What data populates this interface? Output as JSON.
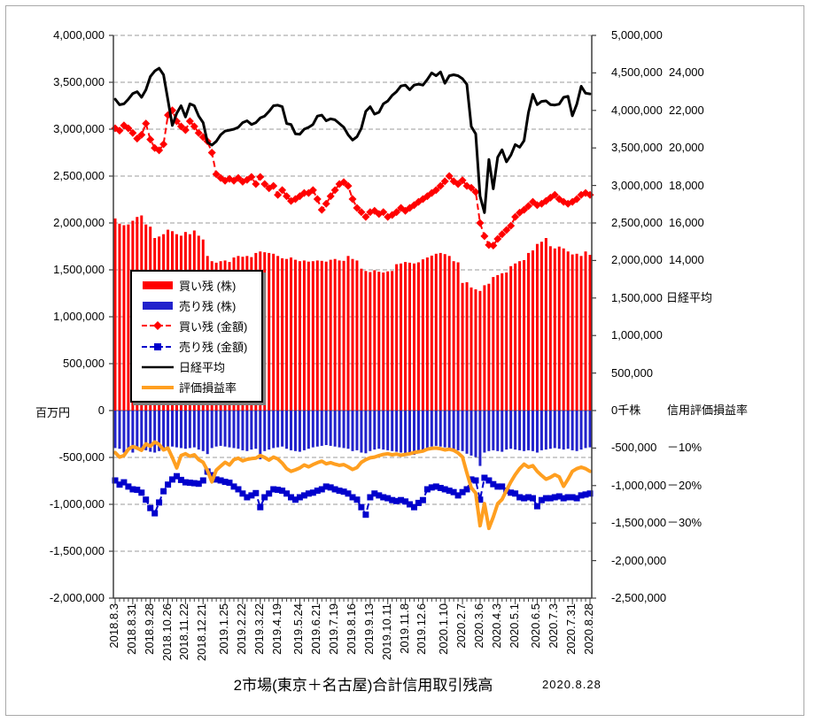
{
  "title": "2市場(東京＋名古屋)合計信用取引残高",
  "as_of_date": "2020.8.28",
  "axes": {
    "left_unit": "百万円",
    "left_labels": [
      "4,000,000",
      "3,500,000",
      "3,000,000",
      "2,500,000",
      "2,000,000",
      "1,500,000",
      "1,000,000",
      "500,000",
      "0",
      "-500,000",
      "-1,000,000",
      "-1,500,000",
      "-2,000,000"
    ],
    "right_labels": [
      "5,000,000",
      "4,500,000",
      "4,000,000",
      "3,500,000",
      "3,000,000",
      "2,500,000",
      "2,000,000",
      "1,500,000",
      "1,000,000",
      "500,000",
      "0千株",
      "-500,000",
      "-1,000,000",
      "-1,500,000",
      "-2,000,000",
      "-2,500,000"
    ],
    "nikkei_scale": {
      "name": "日経平均",
      "labels": [
        "24,000",
        "22,000",
        "20,000",
        "18,000",
        "16,000",
        "14,000"
      ],
      "values": [
        24000,
        22000,
        20000,
        18000,
        16000,
        14000
      ]
    },
    "pct_scale": {
      "name": "信用評価損益率",
      "labels": [
        "－10%",
        "－20%",
        "－30%"
      ],
      "values": [
        -10,
        -20,
        -30
      ]
    },
    "grid_color": "#9b9b9b",
    "axis_color": "#3f3f3f"
  },
  "legend": [
    {
      "label": "買い残 (株)",
      "type": "bar",
      "color": "#ff0000"
    },
    {
      "label": "売り残 (株)",
      "type": "bar",
      "color": "#2222cc"
    },
    {
      "label": "買い残 (金額)",
      "type": "dash-diamond",
      "color": "#ff0000"
    },
    {
      "label": "売り残 (金額)",
      "type": "dash-square",
      "color": "#0000cc"
    },
    {
      "label": "日経平均",
      "type": "line",
      "color": "#000000"
    },
    {
      "label": "評価損益率",
      "type": "line-thick",
      "color": "#ff9f20"
    }
  ],
  "chart_data": {
    "type": "combo",
    "title": "2市場(東京＋名古屋)合計信用取引残高",
    "as_of": "2020.8.28",
    "n_weeks": 109,
    "frequency": "weekly",
    "left_axis": {
      "label": "百万円",
      "range": [
        -2000000,
        4000000
      ],
      "step": 500000
    },
    "right_axis": {
      "label": "千株",
      "range": [
        -2500000,
        5000000
      ],
      "step": 500000
    },
    "nikkei_axis": {
      "label": "日経平均",
      "shown_range": [
        14000,
        24000
      ],
      "step": 2000
    },
    "pct_axis": {
      "label": "信用評価損益率",
      "shown_ticks": [
        -10,
        -20,
        -30
      ]
    },
    "grid": true,
    "legend_position": "inside-left",
    "x_ticks": [
      {
        "label": "2018.8.3",
        "week": 0
      },
      {
        "label": "2018.8.31",
        "week": 4
      },
      {
        "label": "2018.9.28",
        "week": 8
      },
      {
        "label": "2018.10.26",
        "week": 12
      },
      {
        "label": "2018.11.22",
        "week": 16
      },
      {
        "label": "2018.12.21",
        "week": 20
      },
      {
        "label": "2019.1.25",
        "week": 25
      },
      {
        "label": "2019.2.22",
        "week": 29
      },
      {
        "label": "2019.3.22",
        "week": 33
      },
      {
        "label": "2019.4.19",
        "week": 37
      },
      {
        "label": "2019.5.24",
        "week": 42
      },
      {
        "label": "2019.6.21",
        "week": 46
      },
      {
        "label": "2019.7.19",
        "week": 50
      },
      {
        "label": "2019.8.16",
        "week": 54
      },
      {
        "label": "2019.9.13",
        "week": 58
      },
      {
        "label": "2019.10.11",
        "week": 62
      },
      {
        "label": "2019.11.8",
        "week": 66
      },
      {
        "label": "2019.12.6",
        "week": 70
      },
      {
        "label": "2020.1.10",
        "week": 75
      },
      {
        "label": "2020.2.7",
        "week": 79
      },
      {
        "label": "2020.3.6",
        "week": 83
      },
      {
        "label": "2020.4.3",
        "week": 87
      },
      {
        "label": "2020.5.1",
        "week": 91
      },
      {
        "label": "2020.6.5",
        "week": 96
      },
      {
        "label": "2020.7.3",
        "week": 100
      },
      {
        "label": "2020.7.31",
        "week": 104
      },
      {
        "label": "2020.8.28",
        "week": 108
      }
    ],
    "series": [
      {
        "name": "買い残 (株)",
        "type": "bar",
        "axis": "right",
        "unit": "千株",
        "color": "#ff0000",
        "values": [
          2560000,
          2490000,
          2470000,
          2480000,
          2530000,
          2580000,
          2600000,
          2480000,
          2450000,
          2300000,
          2320000,
          2350000,
          2410000,
          2390000,
          2350000,
          2330000,
          2380000,
          2350000,
          2400000,
          2330000,
          2280000,
          2060000,
          1990000,
          1970000,
          1990000,
          2000000,
          1980000,
          2040000,
          2060000,
          2050000,
          2060000,
          2045000,
          2100000,
          2120000,
          2110000,
          2100000,
          2090000,
          2060000,
          2030000,
          2020000,
          2040000,
          2010000,
          1990000,
          2000000,
          1985000,
          1990000,
          2000000,
          1995000,
          1985000,
          2010000,
          2020000,
          2000000,
          1995000,
          2060000,
          2020000,
          2000000,
          1890000,
          1860000,
          1845000,
          1870000,
          1850000,
          1840000,
          1855000,
          1860000,
          1950000,
          1960000,
          1980000,
          1970000,
          1960000,
          1975000,
          2015000,
          2040000,
          2065000,
          2090000,
          2100000,
          2085000,
          2060000,
          1990000,
          1975000,
          1700000,
          1710000,
          1640000,
          1615000,
          1594000,
          1670000,
          1690000,
          1780000,
          1805000,
          1830000,
          1840000,
          1925000,
          1960000,
          1990000,
          2005000,
          2100000,
          2135000,
          2220000,
          2250000,
          2300000,
          2190000,
          2160000,
          2185000,
          2160000,
          2120000,
          2080000,
          2090000,
          2060000,
          2120000,
          2075000
        ]
      },
      {
        "name": "売り残 (株)",
        "type": "bar",
        "axis": "right",
        "unit": "千株",
        "color": "#2222cc",
        "values": [
          -500000,
          -510000,
          -560000,
          -500000,
          -560000,
          -520000,
          -500000,
          -530000,
          -550000,
          -560000,
          -540000,
          -520000,
          -500000,
          -480000,
          -490000,
          -500000,
          -510000,
          -500000,
          -490000,
          -520000,
          -540000,
          -580000,
          -500000,
          -480000,
          -470000,
          -480000,
          -490000,
          -500000,
          -510000,
          -530000,
          -540000,
          -520000,
          -510000,
          -650000,
          -540000,
          -520000,
          -500000,
          -490000,
          -480000,
          -510000,
          -530000,
          -540000,
          -550000,
          -530000,
          -510000,
          -490000,
          -480000,
          -470000,
          -460000,
          -470000,
          -480000,
          -490000,
          -500000,
          -510000,
          -540000,
          -530000,
          -560000,
          -570000,
          -540000,
          -520000,
          -510000,
          -520000,
          -530000,
          -540000,
          -550000,
          -560000,
          -570000,
          -580000,
          -590000,
          -570000,
          -550000,
          -500000,
          -480000,
          -470000,
          -480000,
          -490000,
          -500000,
          -520000,
          -530000,
          -540000,
          -575000,
          -600000,
          -620000,
          -738000,
          -560000,
          -540000,
          -530000,
          -540000,
          -550000,
          -520000,
          -510000,
          -520000,
          -530000,
          -540000,
          -530000,
          -540000,
          -560000,
          -530000,
          -520000,
          -510000,
          -500000,
          -510000,
          -520000,
          -510000,
          -530000,
          -540000,
          -520000,
          -500000,
          -490000
        ]
      },
      {
        "name": "買い残 (金額)",
        "type": "line-diamond",
        "axis": "left",
        "unit": "百万円",
        "color": "#ff0000",
        "values": [
          3010000,
          2985000,
          3040000,
          3010000,
          2960000,
          2900000,
          2940000,
          3060000,
          2890000,
          2800000,
          2775000,
          2840000,
          3150000,
          3200000,
          3085000,
          3030000,
          2990000,
          3085000,
          3030000,
          2960000,
          2915000,
          2870000,
          2750000,
          2520000,
          2480000,
          2450000,
          2470000,
          2450000,
          2480000,
          2440000,
          2460000,
          2490000,
          2415000,
          2490000,
          2415000,
          2370000,
          2395000,
          2300000,
          2350000,
          2285000,
          2235000,
          2255000,
          2285000,
          2320000,
          2320000,
          2350000,
          2255000,
          2140000,
          2205000,
          2285000,
          2350000,
          2415000,
          2435000,
          2395000,
          2255000,
          2160000,
          2115000,
          2065000,
          2115000,
          2130000,
          2095000,
          2115000,
          2065000,
          2085000,
          2115000,
          2160000,
          2130000,
          2160000,
          2190000,
          2225000,
          2255000,
          2285000,
          2320000,
          2350000,
          2395000,
          2445000,
          2500000,
          2445000,
          2415000,
          2455000,
          2395000,
          2375000,
          2330000,
          2000000,
          1860000,
          1765000,
          1760000,
          1830000,
          1880000,
          1925000,
          1970000,
          2065000,
          2110000,
          2140000,
          2180000,
          2225000,
          2190000,
          2205000,
          2235000,
          2270000,
          2300000,
          2255000,
          2225000,
          2205000,
          2225000,
          2255000,
          2300000,
          2320000,
          2300000
        ]
      },
      {
        "name": "売り残 (金額)",
        "type": "line-square",
        "axis": "left",
        "unit": "百万円",
        "color": "#0000cc",
        "values": [
          -745000,
          -790000,
          -765000,
          -810000,
          -840000,
          -845000,
          -875000,
          -950000,
          -1040000,
          -1095000,
          -980000,
          -860000,
          -790000,
          -735000,
          -700000,
          -740000,
          -765000,
          -770000,
          -775000,
          -780000,
          -745000,
          -650000,
          -690000,
          -735000,
          -745000,
          -760000,
          -770000,
          -810000,
          -840000,
          -885000,
          -925000,
          -905000,
          -880000,
          -1030000,
          -925000,
          -885000,
          -840000,
          -845000,
          -855000,
          -885000,
          -925000,
          -950000,
          -925000,
          -905000,
          -885000,
          -875000,
          -855000,
          -840000,
          -810000,
          -820000,
          -840000,
          -855000,
          -865000,
          -885000,
          -925000,
          -950000,
          -1030000,
          -1110000,
          -925000,
          -885000,
          -905000,
          -925000,
          -935000,
          -955000,
          -965000,
          -955000,
          -970000,
          -1000000,
          -1030000,
          -985000,
          -955000,
          -840000,
          -820000,
          -810000,
          -825000,
          -840000,
          -855000,
          -870000,
          -905000,
          -870000,
          -840000,
          -735000,
          -745000,
          -950000,
          -717000,
          -745000,
          -785000,
          -810000,
          -810000,
          -855000,
          -875000,
          -885000,
          -925000,
          -935000,
          -925000,
          -935000,
          -1020000,
          -955000,
          -935000,
          -935000,
          -925000,
          -915000,
          -935000,
          -925000,
          -925000,
          -935000,
          -905000,
          -895000,
          -885000
        ]
      },
      {
        "name": "日経平均",
        "type": "line",
        "axis": "nikkei",
        "unit": "円",
        "color": "#000000",
        "values": [
          22600,
          22300,
          22350,
          22600,
          22900,
          23000,
          22700,
          23100,
          23800,
          24100,
          24250,
          23900,
          22550,
          21200,
          21850,
          22250,
          21650,
          22350,
          22250,
          21700,
          21350,
          20300,
          20150,
          20350,
          20700,
          20900,
          20950,
          21000,
          21100,
          21350,
          21450,
          21250,
          21350,
          21600,
          21700,
          21950,
          22250,
          22280,
          22200,
          21300,
          21250,
          20750,
          20730,
          21000,
          21100,
          21250,
          21700,
          21750,
          21450,
          21550,
          21500,
          21300,
          21100,
          20700,
          20420,
          20600,
          21050,
          21950,
          22200,
          21800,
          21900,
          22350,
          22500,
          22800,
          23000,
          23300,
          23350,
          23100,
          23350,
          23400,
          23350,
          23650,
          24000,
          23850,
          24050,
          23450,
          23850,
          23900,
          23850,
          23690,
          23390,
          21140,
          20750,
          17430,
          16553,
          19389,
          17820,
          19500,
          19900,
          19260,
          19620,
          20180,
          20040,
          20390,
          21880,
          22860,
          22305,
          22480,
          22510,
          22310,
          22290,
          22340,
          22700,
          22750,
          21710,
          22330,
          23290,
          22920,
          22880
        ]
      },
      {
        "name": "評価損益率",
        "type": "line",
        "axis": "pct",
        "unit": "%",
        "color": "#ff9f20",
        "values": [
          -11.2,
          -12.4,
          -12.0,
          -10.3,
          -9.6,
          -10.0,
          -10.6,
          -8.9,
          -9.5,
          -8.4,
          -9.0,
          -10.5,
          -10.0,
          -12.5,
          -15.3,
          -12.0,
          -11.5,
          -12.2,
          -11.8,
          -13.1,
          -13.8,
          -16.0,
          -19.0,
          -15.9,
          -14.8,
          -13.8,
          -14.5,
          -13.1,
          -12.7,
          -13.4,
          -13.0,
          -12.8,
          -12.7,
          -12.0,
          -12.5,
          -13.2,
          -12.4,
          -12.9,
          -14.0,
          -15.5,
          -16.2,
          -15.8,
          -15.3,
          -14.5,
          -15.0,
          -14.4,
          -13.9,
          -13.5,
          -14.2,
          -13.9,
          -14.3,
          -14.6,
          -14.4,
          -15.0,
          -15.7,
          -15.2,
          -13.8,
          -13.1,
          -12.6,
          -12.4,
          -12.0,
          -11.7,
          -11.5,
          -11.8,
          -11.6,
          -11.9,
          -11.7,
          -11.5,
          -11.2,
          -11.0,
          -10.8,
          -10.3,
          -10.1,
          -10.0,
          -10.2,
          -10.5,
          -10.3,
          -10.6,
          -11.3,
          -12.4,
          -16.6,
          -20.6,
          -22.0,
          -30.7,
          -24.8,
          -31.4,
          -28.4,
          -24.8,
          -23.7,
          -21.3,
          -19.0,
          -17.1,
          -15.5,
          -14.3,
          -15.1,
          -14.7,
          -16.2,
          -17.3,
          -18.3,
          -17.8,
          -17.1,
          -17.7,
          -20.2,
          -18.3,
          -16.2,
          -15.5,
          -15.1,
          -15.5,
          -16.2
        ]
      }
    ]
  }
}
